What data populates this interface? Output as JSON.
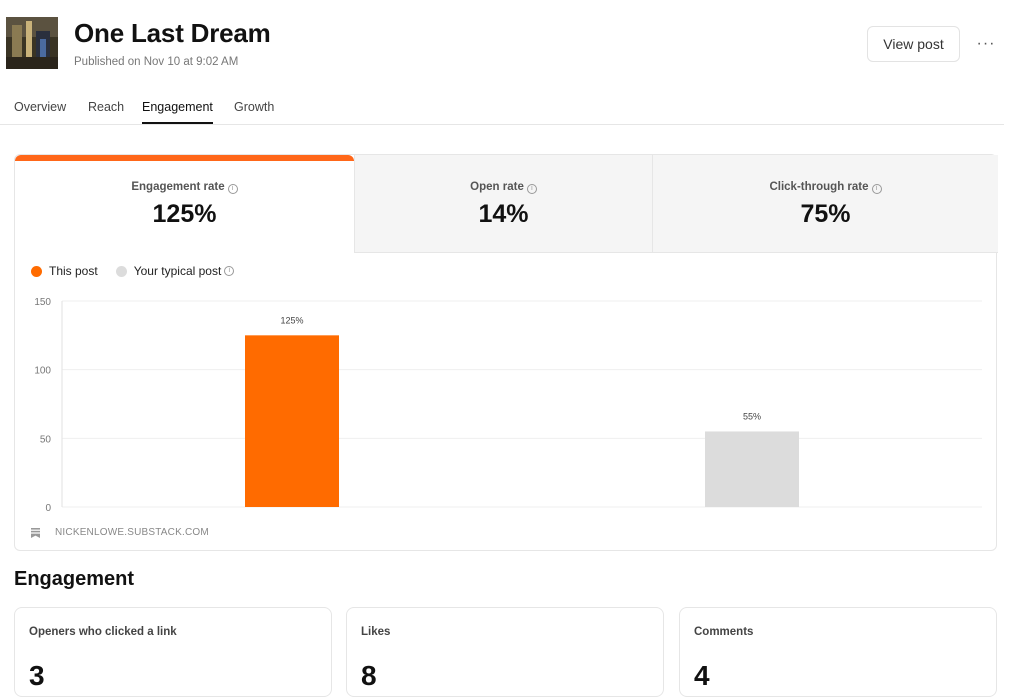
{
  "header": {
    "title": "One Last Dream",
    "published": "Published on Nov 10 at 9:02 AM",
    "view_post_label": "View post",
    "more_label": "···"
  },
  "tabs": [
    {
      "label": "Overview",
      "active": false
    },
    {
      "label": "Reach",
      "active": false
    },
    {
      "label": "Engagement",
      "active": true
    },
    {
      "label": "Growth",
      "active": false
    }
  ],
  "metrics": [
    {
      "label": "Engagement rate",
      "value": "125%",
      "active": true
    },
    {
      "label": "Open rate",
      "value": "14%",
      "active": false
    },
    {
      "label": "Click-through rate",
      "value": "75%",
      "active": false
    }
  ],
  "info_glyph": "i",
  "legend": [
    {
      "label": "This post",
      "color": "#ff6b00"
    },
    {
      "label": "Your typical post",
      "color": "#dcdcdc"
    }
  ],
  "chart_data": {
    "type": "bar",
    "categories": [
      "This post",
      "Your typical post"
    ],
    "values": [
      125,
      55
    ],
    "value_labels": [
      "125%",
      "55%"
    ],
    "colors": [
      "#ff6b00",
      "#dcdcdc"
    ],
    "yticks": [
      0,
      50,
      100,
      150
    ],
    "ylim": [
      0,
      150
    ],
    "grid": true
  },
  "footer": {
    "source": "NICKENLOWE.SUBSTACK.COM"
  },
  "engagement": {
    "title": "Engagement",
    "cards": [
      {
        "label": "Openers who clicked a link",
        "value": "3"
      },
      {
        "label": "Likes",
        "value": "8"
      },
      {
        "label": "Comments",
        "value": "4"
      }
    ]
  },
  "colors": {
    "accent": "#ff6719",
    "bar_this_post": "#ff6b00",
    "bar_typical": "#dcdcdc"
  }
}
